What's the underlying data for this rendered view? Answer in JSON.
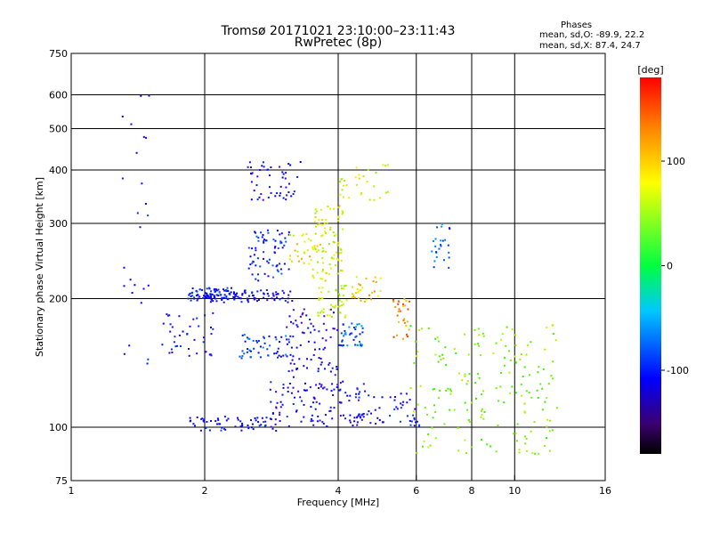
{
  "header": {
    "title_line1": "Tromsø 20171021 23:10:00–23:11:43",
    "title_line2": "RwPretec (8p)",
    "phases_heading": "Phases",
    "phases_o": "mean, sd,O: -89.9, 22.2",
    "phases_x": "mean, sd,X:  87.4, 24.7"
  },
  "colorbar": {
    "unit": "[deg]",
    "ticks": [
      {
        "label": "100",
        "value": 100
      },
      {
        "label": "0",
        "value": 0
      },
      {
        "label": "-100",
        "value": -100
      }
    ],
    "range": [
      -180,
      180
    ]
  },
  "chart_data": {
    "type": "scatter",
    "title": "Tromsø 20171021 23:10:00–23:11:43",
    "subtitle": "RwPretec (8p)",
    "xlabel": "Frequency [MHz]",
    "ylabel": "Stationary phase Virtual Height [km]",
    "x_scale": "log",
    "y_scale": "log",
    "xlim": [
      1,
      16
    ],
    "ylim": [
      75,
      750
    ],
    "x_ticks": [
      {
        "label": "1",
        "value": 1
      },
      {
        "label": "2",
        "value": 2
      },
      {
        "label": "4",
        "value": 4
      },
      {
        "label": "6",
        "value": 6
      },
      {
        "label": "8",
        "value": 8
      },
      {
        "label": "10",
        "value": 10
      },
      {
        "label": "16",
        "value": 16
      }
    ],
    "y_ticks": [
      {
        "label": "750",
        "value": 750
      },
      {
        "label": "600",
        "value": 600
      },
      {
        "label": "500",
        "value": 500
      },
      {
        "label": "400",
        "value": 400
      },
      {
        "label": "300",
        "value": 300
      },
      {
        "label": "200",
        "value": 200
      },
      {
        "label": "100",
        "value": 100
      },
      {
        "label": "75",
        "value": 75
      }
    ],
    "x_grid": [
      2,
      4,
      6,
      8,
      10
    ],
    "y_grid": [
      100,
      200,
      300,
      400,
      500,
      600
    ],
    "color_scale": "rainbow phase [deg]",
    "clusters": [
      {
        "f": [
          1.82,
          2.35
        ],
        "h": [
          198,
          212
        ],
        "phase": -100,
        "n": 70
      },
      {
        "f": [
          2.0,
          3.15
        ],
        "h": [
          196,
          210
        ],
        "phase": -110,
        "n": 90
      },
      {
        "f": [
          1.6,
          2.1
        ],
        "h": [
          145,
          185
        ],
        "phase": -110,
        "n": 40
      },
      {
        "f": [
          1.85,
          2.9
        ],
        "h": [
          98,
          106
        ],
        "phase": -105,
        "n": 60
      },
      {
        "f": [
          2.8,
          4.6
        ],
        "h": [
          100,
          128
        ],
        "phase": -115,
        "n": 120
      },
      {
        "f": [
          2.4,
          3.1
        ],
        "h": [
          145,
          165
        ],
        "phase": -90,
        "n": 50
      },
      {
        "f": [
          2.5,
          3.1
        ],
        "h": [
          220,
          290
        ],
        "phase": -100,
        "n": 70
      },
      {
        "f": [
          2.5,
          3.3
        ],
        "h": [
          340,
          420
        ],
        "phase": -120,
        "n": 50
      },
      {
        "f": [
          3.5,
          4.1
        ],
        "h": [
          220,
          330
        ],
        "phase": 100,
        "n": 90
      },
      {
        "f": [
          3.1,
          3.5
        ],
        "h": [
          240,
          285
        ],
        "phase": 110,
        "n": 25
      },
      {
        "f": [
          3.6,
          4.2
        ],
        "h": [
          180,
          215
        ],
        "phase": 95,
        "n": 45
      },
      {
        "f": [
          3.0,
          4.0
        ],
        "h": [
          130,
          190
        ],
        "phase": -120,
        "n": 80
      },
      {
        "f": [
          4.0,
          4.6
        ],
        "h": [
          155,
          175
        ],
        "phase": -80,
        "n": 40
      },
      {
        "f": [
          4.3,
          6.1
        ],
        "h": [
          100,
          120
        ],
        "phase": -110,
        "n": 50
      },
      {
        "f": [
          4.3,
          5.0
        ],
        "h": [
          195,
          225
        ],
        "phase": 120,
        "n": 30
      },
      {
        "f": [
          5.3,
          5.8
        ],
        "h": [
          160,
          200
        ],
        "phase": 140,
        "n": 30
      },
      {
        "f": [
          6.5,
          7.2
        ],
        "h": [
          230,
          300
        ],
        "phase": -80,
        "n": 25
      },
      {
        "f": [
          5.8,
          12.5
        ],
        "h": [
          85,
          175
        ],
        "phase": 70,
        "n": 180
      },
      {
        "f": [
          4.0,
          5.2
        ],
        "h": [
          340,
          420
        ],
        "phase": 100,
        "n": 30
      },
      {
        "f": [
          1.3,
          1.5
        ],
        "h": [
          140,
          600
        ],
        "phase": -110,
        "n": 25
      }
    ]
  }
}
